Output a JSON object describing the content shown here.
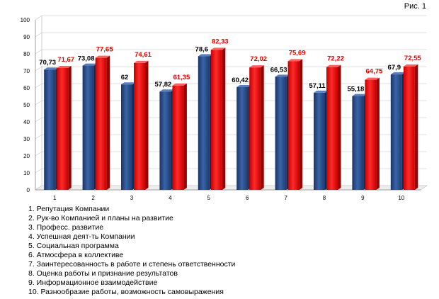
{
  "figure_label": "Рис. 1",
  "legend_items": [
    "1. Репутация Компании",
    "2. Рук-во Компанией и планы на развитие",
    "3. Професс. развитие",
    "4. Успешная деят-ть Компании",
    "5. Социальная программа",
    "6. Атмосфера в коллективе",
    "7. Заинтересованность в работе и степень ответственности",
    "8. Оценка работы и признание результатов",
    "9. Информационное взаимодействие",
    "10. Разнообразие работы, возможность самовыражения"
  ],
  "chart_data": {
    "type": "bar",
    "title": "",
    "xlabel": "",
    "ylabel": "",
    "ylim": [
      0,
      100
    ],
    "yticks": [
      "0",
      "10",
      "20",
      "30",
      "40",
      "50",
      "60",
      "70",
      "80",
      "90",
      "100"
    ],
    "categories": [
      "1",
      "2",
      "3",
      "4",
      "5",
      "6",
      "7",
      "8",
      "9",
      "10"
    ],
    "colors": {
      "series1": "#2a4d85",
      "series2": "#e8090c"
    },
    "series": [
      {
        "name": "series1",
        "values": [
          70.73,
          73.08,
          62,
          57.82,
          78.6,
          60.42,
          66.53,
          57.11,
          55.18,
          67.9
        ],
        "labels": [
          "70,73",
          "73,08",
          "62",
          "57,82",
          "78,6",
          "60,42",
          "66,53",
          "57,11",
          "55,18",
          "67,9"
        ]
      },
      {
        "name": "series2",
        "values": [
          71.67,
          77.65,
          74.61,
          61.35,
          82.33,
          72.02,
          75.69,
          72.22,
          64.75,
          72.55
        ],
        "labels": [
          "71,67",
          "77,65",
          "74,61",
          "61,35",
          "82,33",
          "72,02",
          "75,69",
          "72,22",
          "64,75",
          "72,55"
        ]
      }
    ]
  }
}
